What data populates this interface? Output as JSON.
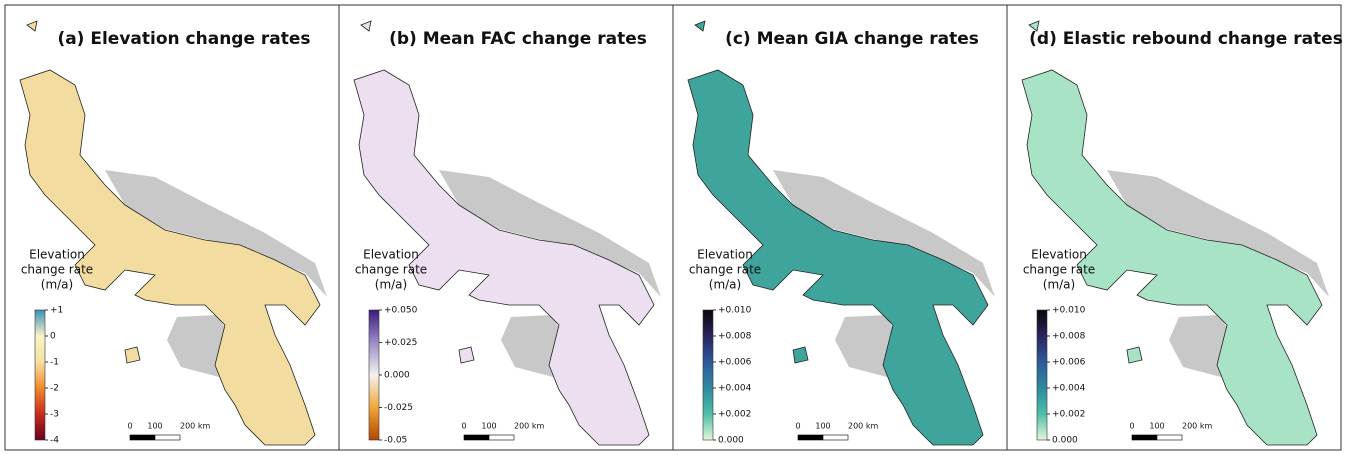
{
  "panels": [
    {
      "title": "(a) Elevation change rates",
      "legend_title": [
        "Elevation",
        "change rate",
        "(m/a)"
      ],
      "fill": "#f2dca0",
      "colorbar": {
        "lim": [
          -4,
          1
        ],
        "ticks": [
          {
            "value": 1,
            "label": "+1"
          },
          0,
          -1,
          -2,
          -3,
          -4
        ],
        "colors": [
          "#67001f",
          "#c92a1e",
          "#f08a2a",
          "#f7e0a0",
          "#f9f3c7",
          "#3a8fb7"
        ]
      },
      "scalebar": [
        "0",
        "100",
        "200 km"
      ]
    },
    {
      "title": "(b) Mean FAC change rates",
      "legend_title": [
        "Elevation",
        "change rate",
        "(m/a)"
      ],
      "fill": "#ecdfef",
      "colorbar": {
        "lim": [
          -0.05,
          0.05
        ],
        "ticks": [
          {
            "value": 0.05,
            "label": "+0.050"
          },
          {
            "value": 0.025,
            "label": "+0.025"
          },
          {
            "value": 0,
            "label": "0.000"
          },
          {
            "value": -0.025,
            "label": "-0.025"
          },
          -0.05
        ],
        "colors": [
          "#b34700",
          "#f0a63a",
          "#f4f1ee",
          "#9c8cc4",
          "#3b1980"
        ]
      },
      "scalebar": [
        "0",
        "100",
        "200 km"
      ]
    },
    {
      "title": "(c) Mean GIA change rates",
      "legend_title": [
        "Elevation",
        "change rate",
        "(m/a)"
      ],
      "fill": "#3fa59c",
      "colorbar": {
        "lim": [
          0,
          0.01
        ],
        "ticks": [
          {
            "value": 0.01,
            "label": "+0.010"
          },
          {
            "value": 0.008,
            "label": "+0.008"
          },
          {
            "value": 0.006,
            "label": "+0.006"
          },
          {
            "value": 0.004,
            "label": "+0.004"
          },
          {
            "value": 0.002,
            "label": "+0.002"
          },
          {
            "value": 0,
            "label": "0.000"
          }
        ],
        "colors": [
          "#e6f5d8",
          "#4cc0a7",
          "#2d8aa0",
          "#2d5a9a",
          "#2a2460",
          "#0b0405"
        ]
      },
      "scalebar": [
        "0",
        "100",
        "200 km"
      ]
    },
    {
      "title": "(d) Elastic rebound change rates",
      "legend_title": [
        "Elevation",
        "change rate",
        "(m/a)"
      ],
      "fill": "#a8e3c6",
      "colorbar": {
        "lim": [
          0,
          0.01
        ],
        "ticks": [
          {
            "value": 0.01,
            "label": "+0.010"
          },
          {
            "value": 0.008,
            "label": "+0.008"
          },
          {
            "value": 0.006,
            "label": "+0.006"
          },
          {
            "value": 0.004,
            "label": "+0.004"
          },
          {
            "value": 0.002,
            "label": "+0.002"
          },
          {
            "value": 0,
            "label": "0.000"
          }
        ],
        "colors": [
          "#e6f5d8",
          "#4cc0a7",
          "#2d8aa0",
          "#2d5a9a",
          "#2a2460",
          "#0b0405"
        ]
      },
      "scalebar": [
        "0",
        "100",
        "200 km"
      ]
    }
  ]
}
